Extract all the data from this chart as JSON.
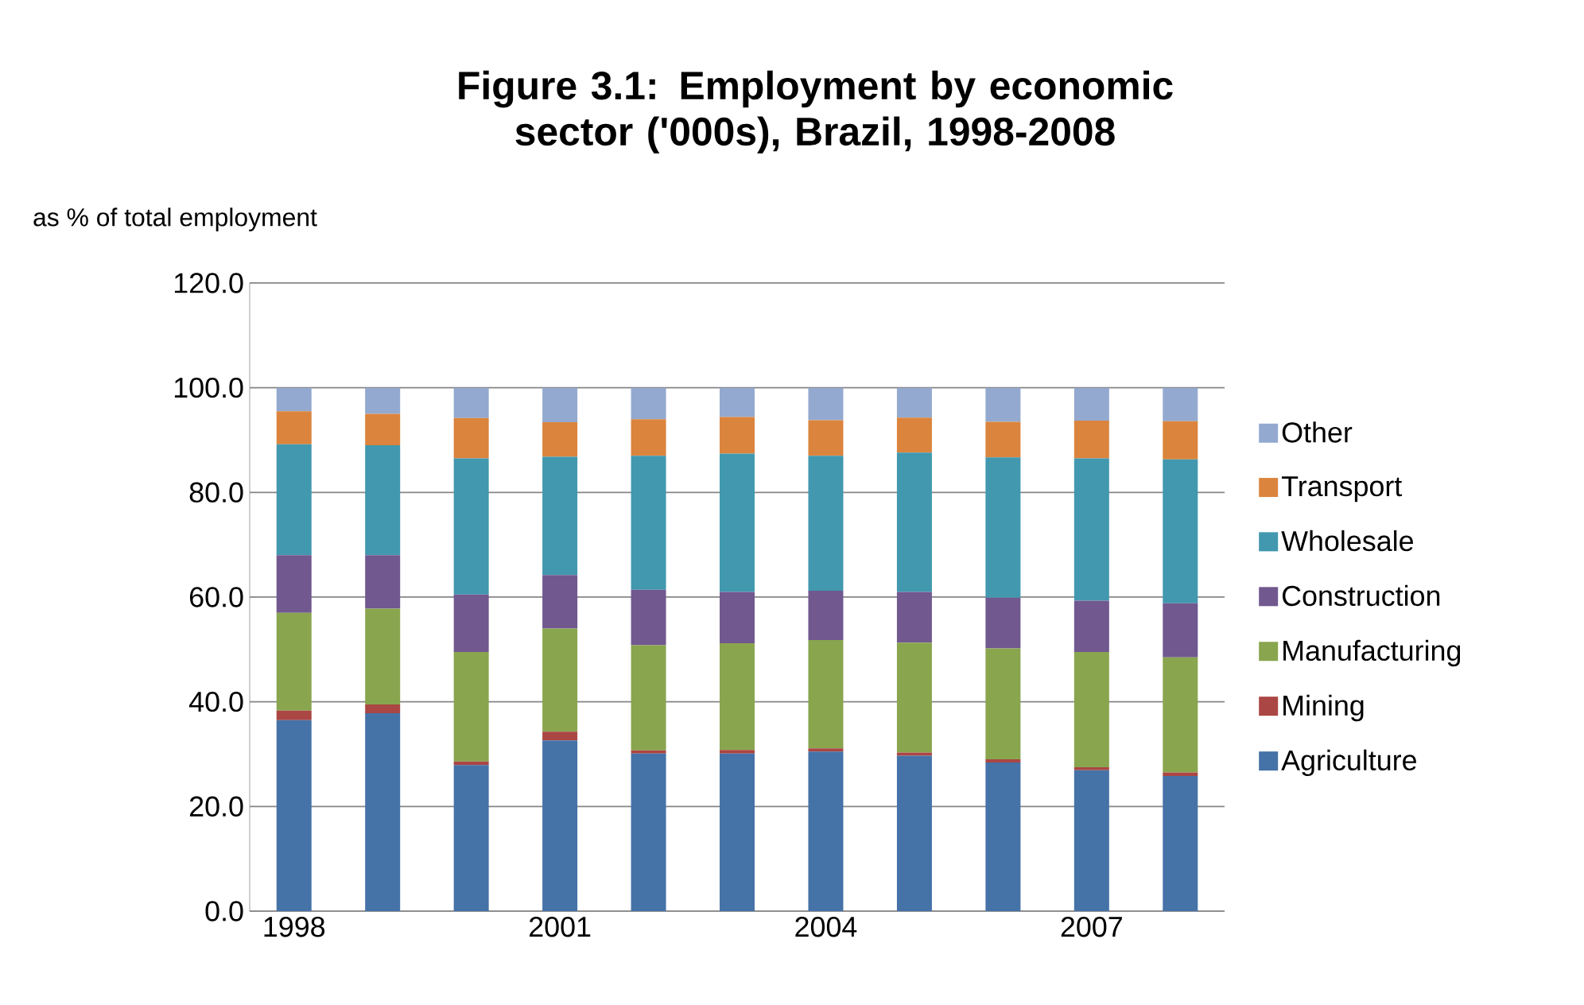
{
  "chart_data": {
    "type": "bar",
    "stacked": true,
    "title": "Figure 3.1: Employment by economic sector ('000s), Brazil, 1998-2008",
    "ylabel": "as % of total employment",
    "categories": [
      "1998",
      null,
      null,
      "2001",
      null,
      null,
      "2004",
      null,
      null,
      "2007",
      null
    ],
    "series": [
      {
        "name": "Agriculture",
        "color": "#4572a7",
        "values": [
          36.5,
          37.8,
          27.9,
          32.6,
          30.1,
          30.1,
          30.5,
          29.7,
          28.4,
          26.9,
          25.8
        ]
      },
      {
        "name": "Mining",
        "color": "#aa4643",
        "values": [
          1.8,
          1.7,
          0.7,
          1.7,
          0.6,
          0.7,
          0.6,
          0.6,
          0.6,
          0.6,
          0.7
        ]
      },
      {
        "name": "Manufacturing",
        "color": "#89a54e",
        "values": [
          18.7,
          18.3,
          20.9,
          19.7,
          20.1,
          20.4,
          20.7,
          21.0,
          21.2,
          22.0,
          22.0
        ]
      },
      {
        "name": "Construction",
        "color": "#71588f",
        "values": [
          11.0,
          10.2,
          11.0,
          10.2,
          10.6,
          9.8,
          9.4,
          9.7,
          9.7,
          9.8,
          10.3
        ]
      },
      {
        "name": "Wholesale",
        "color": "#4198af",
        "values": [
          21.2,
          21.0,
          26.0,
          22.6,
          25.6,
          26.4,
          25.8,
          26.6,
          26.8,
          27.2,
          27.5
        ]
      },
      {
        "name": "Transport",
        "color": "#db843d",
        "values": [
          6.3,
          6.0,
          7.7,
          6.6,
          7.0,
          7.0,
          6.8,
          6.7,
          6.8,
          7.2,
          7.3
        ]
      },
      {
        "name": "Other",
        "color": "#93a9cf",
        "values": [
          4.5,
          5.0,
          5.8,
          6.6,
          6.0,
          5.6,
          6.2,
          5.7,
          6.5,
          6.3,
          6.4
        ]
      }
    ],
    "ylim": [
      0,
      120
    ],
    "yticks": [
      {
        "value": 0,
        "label": "0.0"
      },
      {
        "value": 20,
        "label": "20.0"
      },
      {
        "value": 40,
        "label": "40.0"
      },
      {
        "value": 60,
        "label": "60.0"
      },
      {
        "value": 80,
        "label": "80.0"
      },
      {
        "value": 100,
        "label": "100.0"
      },
      {
        "value": 120,
        "label": "120.0"
      }
    ],
    "grid": "y",
    "legend": "right"
  }
}
